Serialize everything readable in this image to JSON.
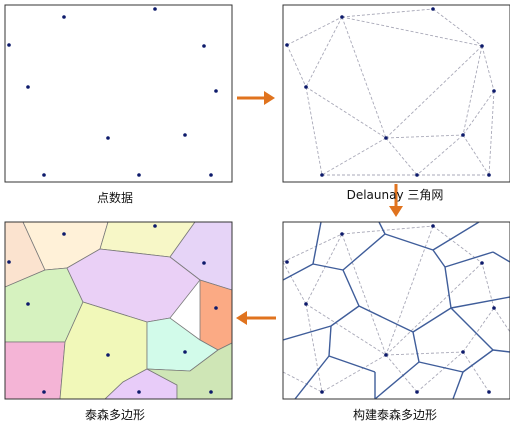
{
  "captions": {
    "points": "点数据",
    "delaunay": "Delaunay 三角网",
    "thiessen": "泰森多边形",
    "build": "构建泰森多边形"
  },
  "colors": {
    "point": "#0d1a6b",
    "arrow": "#e0731e",
    "delaunay_edge": "#a9a9b8",
    "voronoi_edge": "#3f5d9a",
    "frame": "#333333",
    "cell_palette": [
      "#f9d7c6",
      "#fbe7d3",
      "#f5f3c3",
      "#efe3f6",
      "#d9cbef",
      "#d8f2c4",
      "#efd3f6",
      "#f9f6c1",
      "#fba885",
      "#c7f0b2",
      "#f7bfe0",
      "#f4a9c8",
      "#d4fbe9",
      "#c8e6b7",
      "#ead5ff",
      "#e6c4fa"
    ]
  },
  "icons": {
    "arrow_1": "arrow-right-icon",
    "arrow_2": "arrow-down-icon",
    "arrow_3": "arrow-left-icon"
  }
}
